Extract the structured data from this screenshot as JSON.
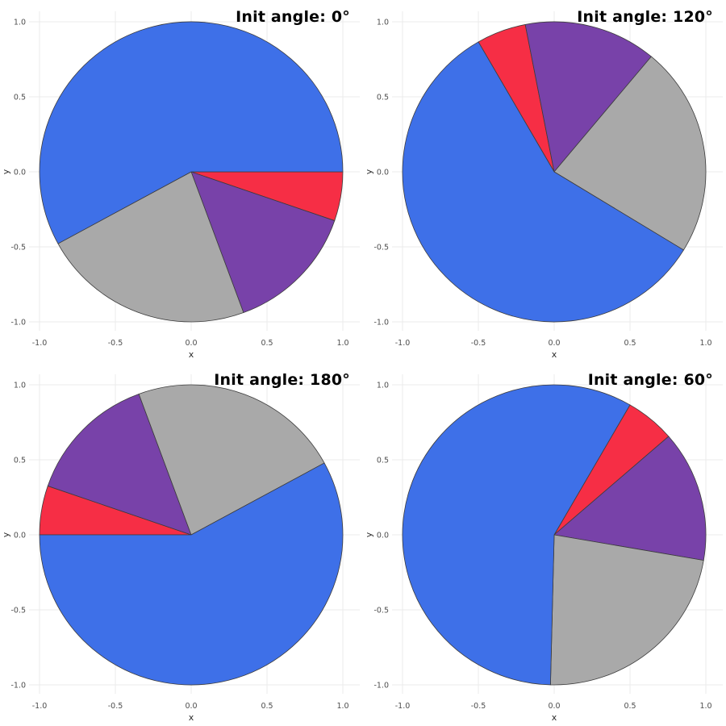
{
  "figure": {
    "background": "#ffffff",
    "rows": 2,
    "cols": 2
  },
  "style": {
    "grid_color": "#ebebeb",
    "tick_label_color": "#4e4e4e",
    "axis_label_color": "#2b2b2b",
    "title_color": "#000000",
    "slice_stroke_color": "#3c3c3c",
    "blue": "#3e70e8",
    "red": "#f62e45",
    "purple": "#7842a9",
    "gray": "#a9a9a9"
  },
  "axes": {
    "x_label": "x",
    "y_label": "y",
    "x_ticks": [
      "-1.0",
      "-0.5",
      "0.0",
      "0.5",
      "1.0"
    ],
    "x_tick_values": [
      -1,
      -0.5,
      0,
      0.5,
      1
    ],
    "y_ticks": [
      "1.0",
      "0.5",
      "0.0",
      "-0.5",
      "-1.0"
    ],
    "y_tick_values": [
      1,
      0.5,
      0,
      -0.5,
      -1
    ],
    "xlim": [
      -1,
      1
    ],
    "ylim": [
      -1,
      1
    ],
    "grid": true,
    "legend": false
  },
  "chart_data": [
    {
      "type": "pie",
      "title": "Init angle: 0°",
      "init_angle_deg": 0,
      "direction": "clockwise",
      "slices": [
        {
          "color": "#f62e45",
          "angle_deg": 19.0,
          "fraction": 0.053
        },
        {
          "color": "#7842a9",
          "angle_deg": 50.8,
          "fraction": 0.141
        },
        {
          "color": "#a9a9a9",
          "angle_deg": 81.6,
          "fraction": 0.227
        },
        {
          "color": "#3e70e8",
          "angle_deg": 208.6,
          "fraction": 0.579
        }
      ]
    },
    {
      "type": "pie",
      "title": "Init angle: 120°",
      "init_angle_deg": 120,
      "direction": "clockwise",
      "slices": [
        {
          "color": "#f62e45",
          "angle_deg": 19.0,
          "fraction": 0.053
        },
        {
          "color": "#7842a9",
          "angle_deg": 50.8,
          "fraction": 0.141
        },
        {
          "color": "#a9a9a9",
          "angle_deg": 81.6,
          "fraction": 0.227
        },
        {
          "color": "#3e70e8",
          "angle_deg": 208.6,
          "fraction": 0.579
        }
      ]
    },
    {
      "type": "pie",
      "title": "Init angle: 180°",
      "init_angle_deg": 180,
      "direction": "clockwise",
      "slices": [
        {
          "color": "#f62e45",
          "angle_deg": 19.0,
          "fraction": 0.053
        },
        {
          "color": "#7842a9",
          "angle_deg": 50.8,
          "fraction": 0.141
        },
        {
          "color": "#a9a9a9",
          "angle_deg": 81.6,
          "fraction": 0.227
        },
        {
          "color": "#3e70e8",
          "angle_deg": 208.6,
          "fraction": 0.579
        }
      ]
    },
    {
      "type": "pie",
      "title": "Init angle: 60°",
      "init_angle_deg": 60,
      "direction": "clockwise",
      "slices": [
        {
          "color": "#f62e45",
          "angle_deg": 19.0,
          "fraction": 0.053
        },
        {
          "color": "#7842a9",
          "angle_deg": 50.8,
          "fraction": 0.141
        },
        {
          "color": "#a9a9a9",
          "angle_deg": 81.6,
          "fraction": 0.227
        },
        {
          "color": "#3e70e8",
          "angle_deg": 208.6,
          "fraction": 0.579
        }
      ]
    }
  ]
}
